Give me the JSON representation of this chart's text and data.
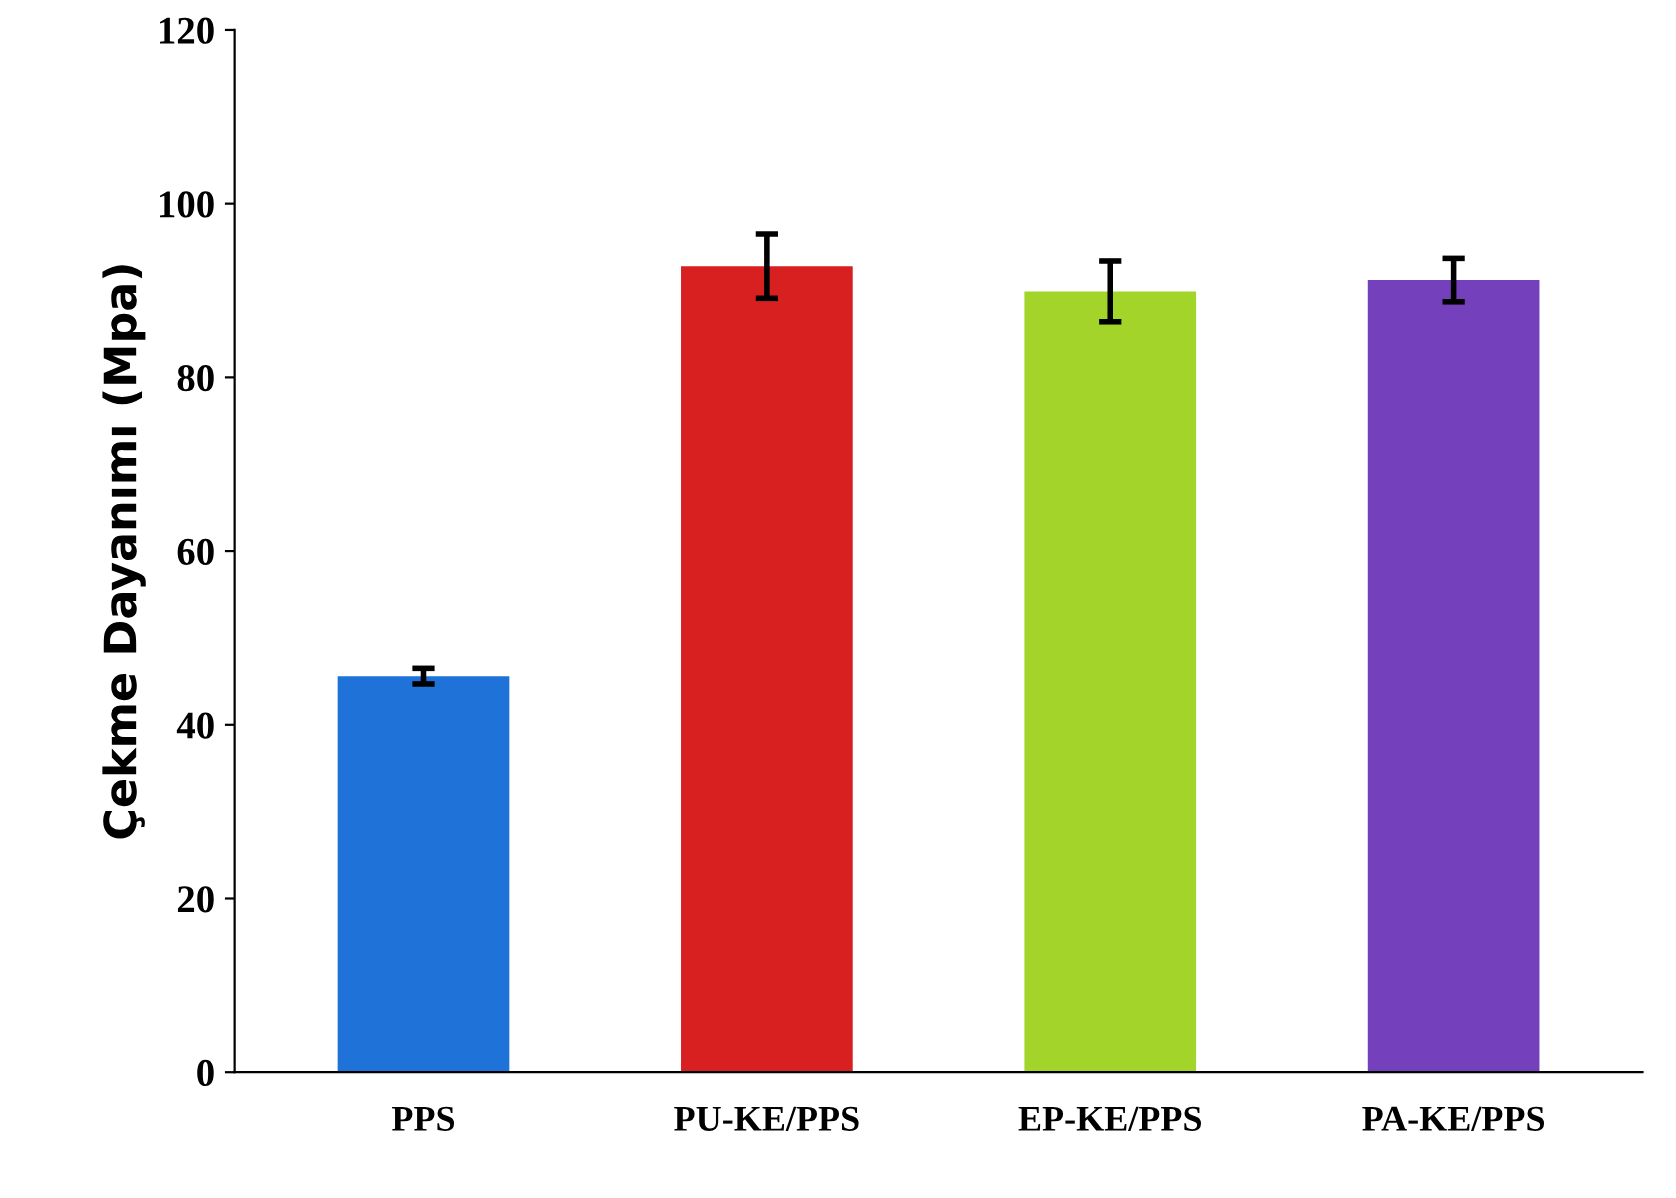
{
  "chart_data": {
    "type": "bar",
    "ylabel": "Çekme Dayanımı (Mpa)",
    "categories": [
      "PPS",
      "PU-KE/PPS",
      "EP-KE/PPS",
      "PA-KE/PPS"
    ],
    "values": [
      45.6,
      92.8,
      89.9,
      91.2
    ],
    "errors": [
      0.9,
      3.7,
      3.5,
      2.5
    ],
    "colors": [
      "#1f72d8",
      "#d82020",
      "#a2d42a",
      "#7440bc"
    ],
    "ylim": [
      0,
      120
    ],
    "yticks": [
      0,
      20,
      40,
      60,
      80,
      100,
      120
    ],
    "grid": false,
    "legend": false
  }
}
